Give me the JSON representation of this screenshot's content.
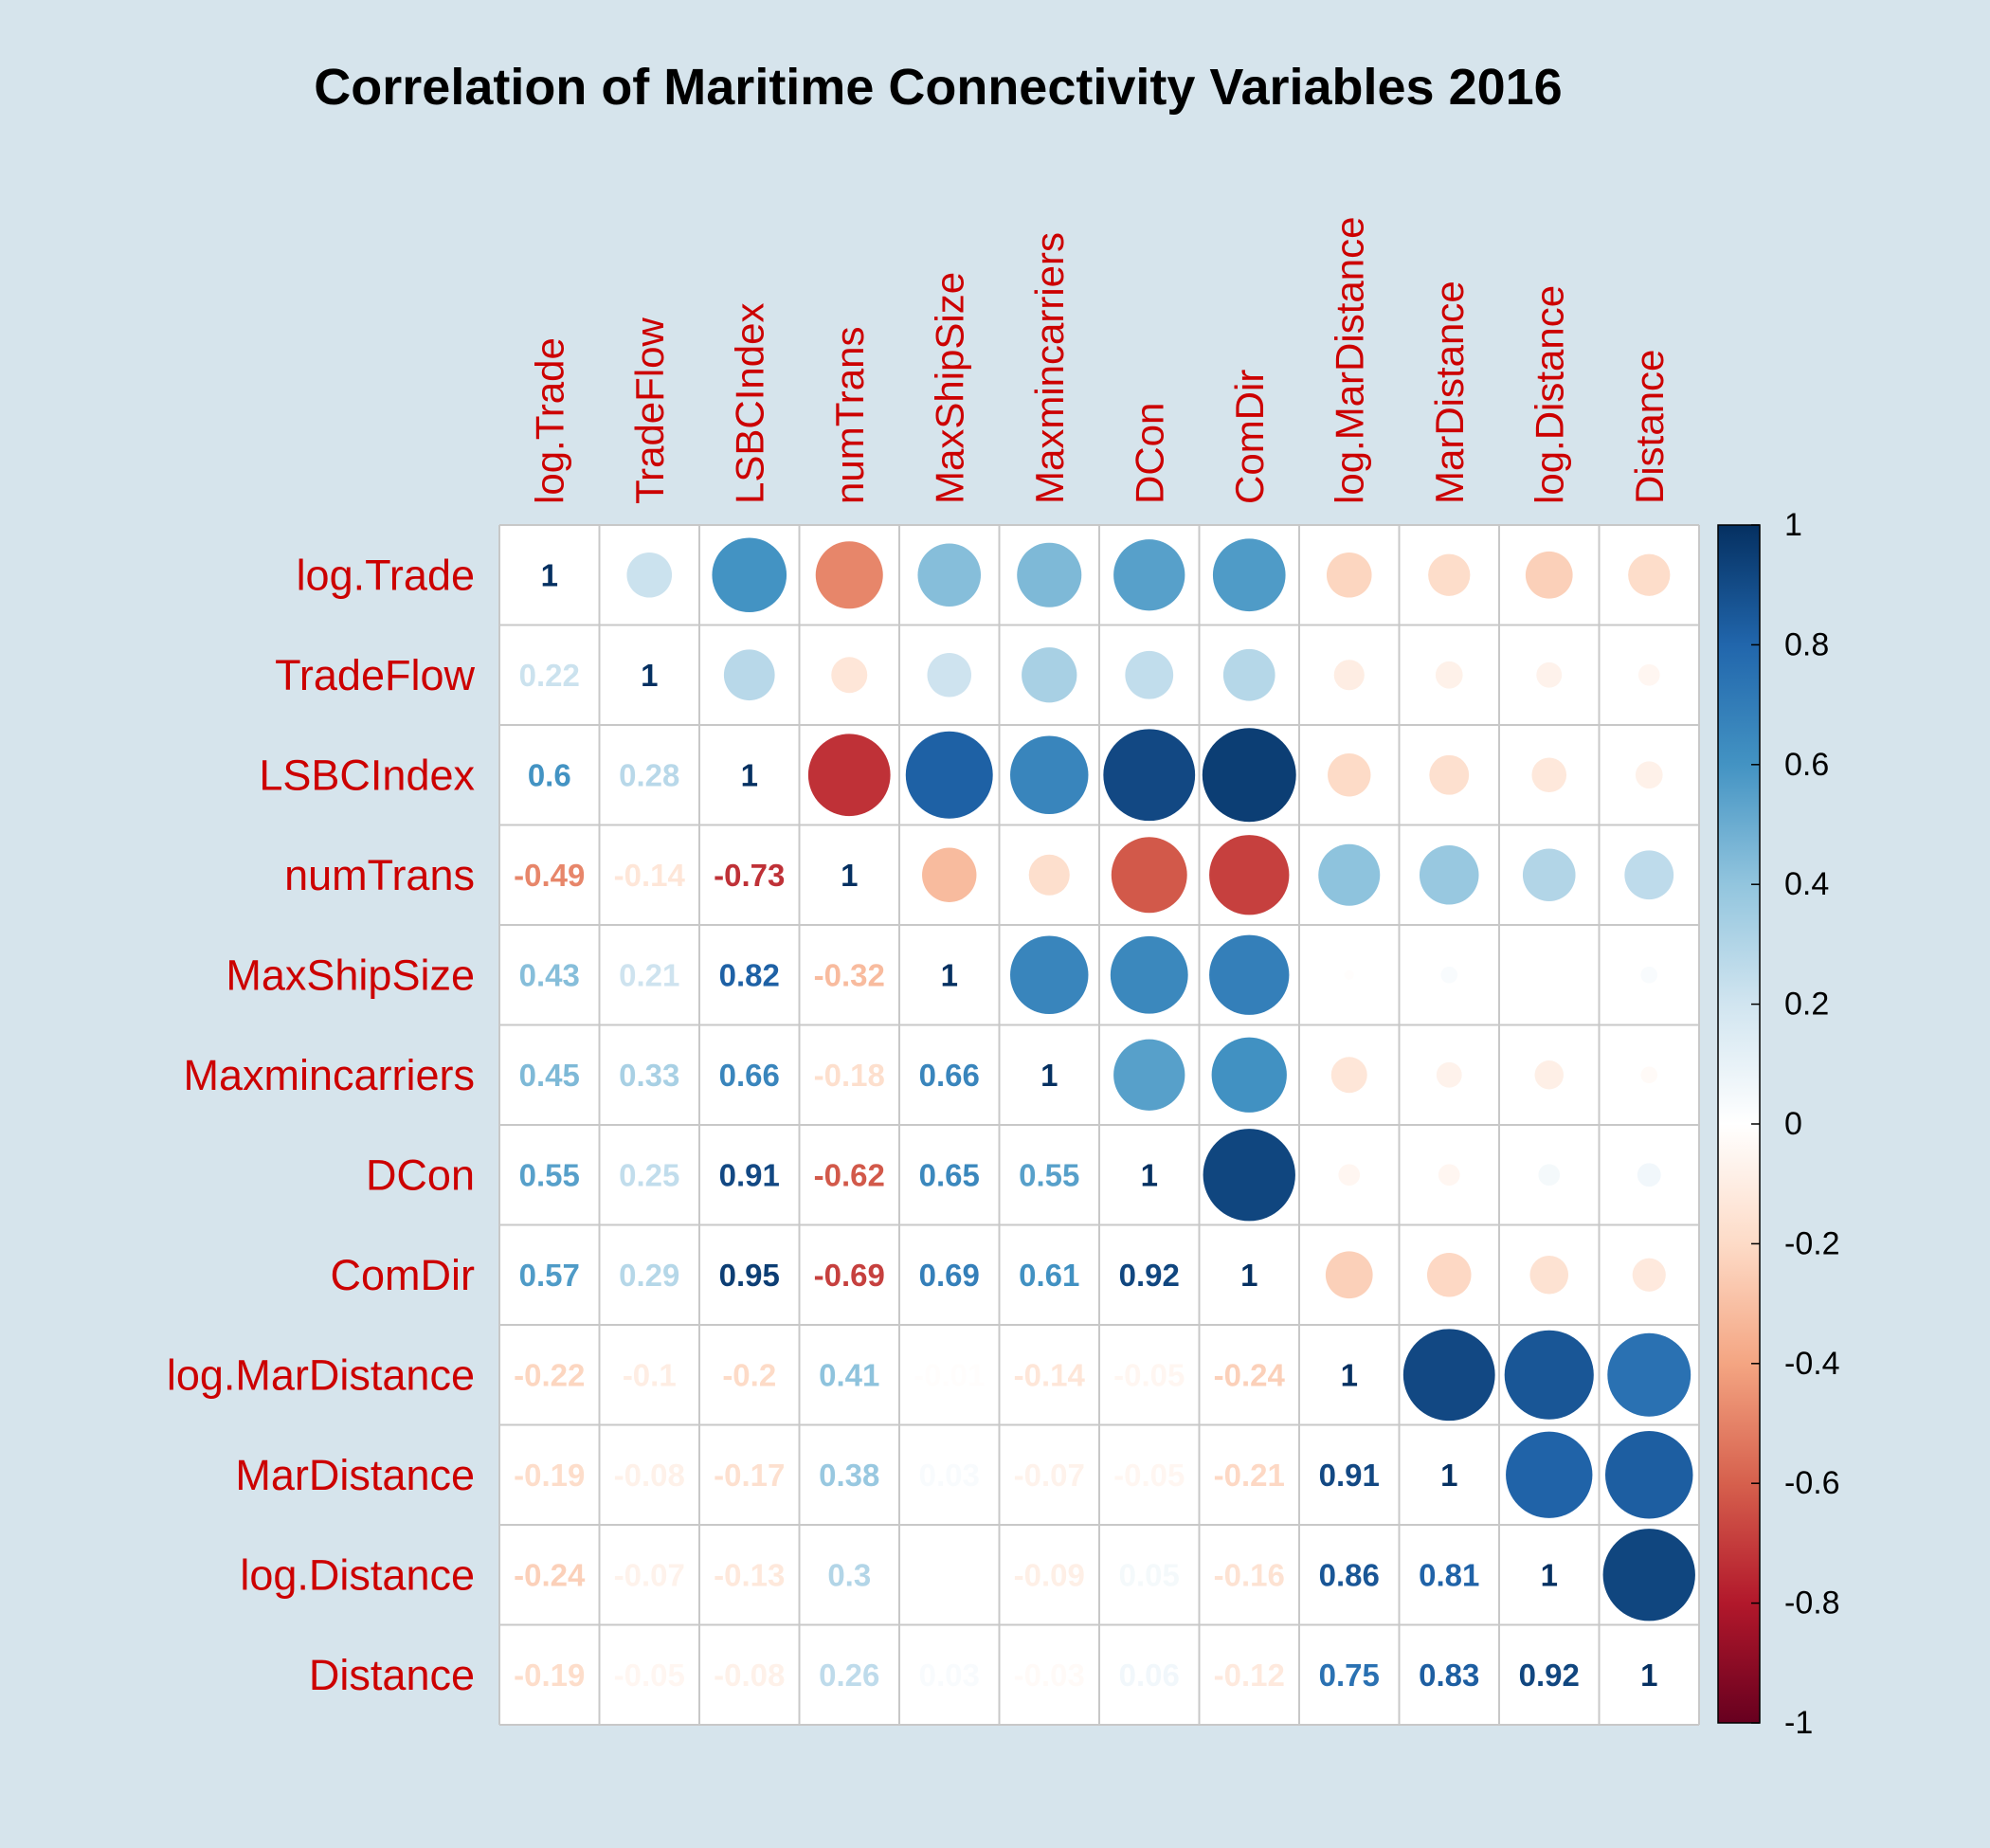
{
  "chart_data": {
    "type": "heatmap",
    "title": "Correlation of Maritime Connectivity Variables 2016",
    "variables": [
      "log.Trade",
      "TradeFlow",
      "LSBCIndex",
      "numTrans",
      "MaxShipSize",
      "Maxmincarriers",
      "DCon",
      "ComDir",
      "log.MarDistance",
      "MarDistance",
      "log.Distance",
      "Distance"
    ],
    "matrix": [
      [
        1,
        0.22,
        0.6,
        -0.49,
        0.43,
        0.45,
        0.55,
        0.57,
        -0.22,
        -0.19,
        -0.24,
        -0.19
      ],
      [
        0.22,
        1,
        0.28,
        -0.14,
        0.21,
        0.33,
        0.25,
        0.29,
        -0.1,
        -0.08,
        -0.07,
        -0.05
      ],
      [
        0.6,
        0.28,
        1,
        -0.73,
        0.82,
        0.66,
        0.91,
        0.95,
        -0.2,
        -0.17,
        -0.13,
        -0.08
      ],
      [
        -0.49,
        -0.14,
        -0.73,
        1,
        -0.32,
        -0.18,
        -0.62,
        -0.69,
        0.41,
        0.38,
        0.3,
        0.26
      ],
      [
        0.43,
        0.21,
        0.82,
        -0.32,
        1,
        0.66,
        0.65,
        0.69,
        -0.01,
        0.03,
        0,
        0.03
      ],
      [
        0.45,
        0.33,
        0.66,
        -0.18,
        0.66,
        1,
        0.55,
        0.61,
        -0.14,
        -0.07,
        -0.09,
        -0.03
      ],
      [
        0.55,
        0.25,
        0.91,
        -0.62,
        0.65,
        0.55,
        1,
        0.92,
        -0.05,
        -0.05,
        0.05,
        0.06
      ],
      [
        0.57,
        0.29,
        0.95,
        -0.69,
        0.69,
        0.61,
        0.92,
        1,
        -0.24,
        -0.21,
        -0.16,
        -0.12
      ],
      [
        -0.22,
        -0.1,
        -0.2,
        0.41,
        -0.01,
        -0.14,
        -0.05,
        -0.24,
        1,
        0.91,
        0.86,
        0.75
      ],
      [
        -0.19,
        -0.08,
        -0.17,
        0.38,
        0.03,
        -0.07,
        -0.05,
        -0.21,
        0.91,
        1,
        0.81,
        0.83
      ],
      [
        -0.24,
        -0.07,
        -0.13,
        0.3,
        0,
        -0.09,
        0.05,
        -0.16,
        0.86,
        0.81,
        1,
        0.92
      ],
      [
        -0.19,
        -0.05,
        -0.08,
        0.26,
        0.03,
        -0.03,
        0.06,
        -0.12,
        0.75,
        0.83,
        0.92,
        1
      ]
    ],
    "display_labels": [
      [
        "1",
        "0.22",
        "0.6",
        "-0.49",
        "0.43",
        "0.45",
        "0.55",
        "0.57",
        "-0.22",
        "-0.19",
        "-0.24",
        "-0.19"
      ],
      [
        "0.22",
        "1",
        "0.28",
        "-0.14",
        "0.21",
        "0.33",
        "0.25",
        "0.29",
        "-0.1",
        "-0.08",
        "-0.07",
        "-0.05"
      ],
      [
        "0.6",
        "0.28",
        "1",
        "-0.73",
        "0.82",
        "0.66",
        "0.91",
        "0.95",
        "-0.2",
        "-0.17",
        "-0.13",
        "-0.08"
      ],
      [
        "-0.49",
        "-0.14",
        "-0.73",
        "1",
        "-0.32",
        "-0.18",
        "-0.62",
        "-0.69",
        "0.41",
        "0.38",
        "0.3",
        "0.26"
      ],
      [
        "0.43",
        "0.21",
        "0.82",
        "-0.32",
        "1",
        "0.66",
        "0.65",
        "0.69",
        "-0.01",
        "0.03",
        "0",
        "0.03"
      ],
      [
        "0.45",
        "0.33",
        "0.66",
        "-0.18",
        "0.66",
        "1",
        "0.55",
        "0.61",
        "-0.14",
        "-0.07",
        "-0.09",
        "-0.03"
      ],
      [
        "0.55",
        "0.25",
        "0.91",
        "-0.62",
        "0.65",
        "0.55",
        "1",
        "0.92",
        "-0.05",
        "-0.05",
        "0.05",
        "0.06"
      ],
      [
        "0.57",
        "0.29",
        "0.95",
        "-0.69",
        "0.69",
        "0.61",
        "0.92",
        "1",
        "-0.24",
        "-0.21",
        "-0.16",
        "-0.12"
      ],
      [
        "-0.22",
        "-0.1",
        "-0.2",
        "0.41",
        "-0.01",
        "-0.14",
        "-0.05",
        "-0.24",
        "1",
        "0.91",
        "0.86",
        "0.75"
      ],
      [
        "-0.19",
        "-0.08",
        "-0.17",
        "0.38",
        "0.03",
        "-0.07",
        "-0.05",
        "-0.21",
        "0.91",
        "1",
        "0.81",
        "0.83"
      ],
      [
        "-0.24",
        "-0.07",
        "-0.13",
        "0.3",
        "0",
        "-0.09",
        "0.05",
        "-0.16",
        "0.86",
        "0.81",
        "1",
        "0.92"
      ],
      [
        "-0.19",
        "-0.05",
        "-0.08",
        "0.26",
        "0.03",
        "-0.03",
        "0.06",
        "-0.12",
        "0.75",
        "0.83",
        "0.92",
        "1"
      ]
    ],
    "lower_triangle": "numbers",
    "upper_triangle": "circles",
    "diagonal": "numbers",
    "scale_range": [
      -1,
      1
    ],
    "colorbar_ticks": [
      "1",
      "0.8",
      "0.6",
      "0.4",
      "0.2",
      "0",
      "-0.2",
      "-0.4",
      "-0.6",
      "-0.8",
      "-1"
    ],
    "colorbar_tick_values": [
      1,
      0.8,
      0.6,
      0.4,
      0.2,
      0,
      -0.2,
      -0.4,
      -0.6,
      -0.8,
      -1
    ],
    "colorbar_placement": "right",
    "grid": true
  },
  "colors": {
    "background": "#d6e4ec",
    "label_color": "#cc0000",
    "title_color": "#000000",
    "grid_color": "#c8c8c8",
    "cell_background": "#ffffff",
    "palette": [
      "#67001f",
      "#b2182b",
      "#d6604d",
      "#f4a582",
      "#fddbc7",
      "#ffffff",
      "#d1e5f0",
      "#92c5de",
      "#4393c3",
      "#2166ac",
      "#053061"
    ]
  }
}
